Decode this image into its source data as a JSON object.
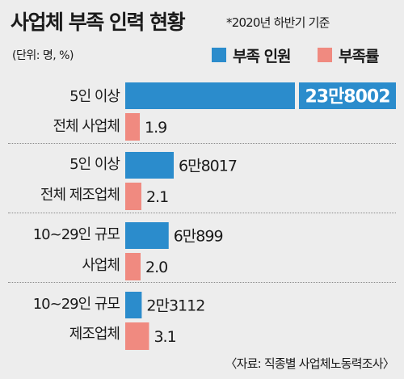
{
  "title": "사업체 부족 인력 현황",
  "note": "*2020년 하반기 기준",
  "unit": "(단위: 명, %)",
  "legend": [
    {
      "label": "부족 인원",
      "color": "#2b8ccc"
    },
    {
      "label": "부족률",
      "color": "#f08a80"
    }
  ],
  "source": "〈자료: 직종별 사업체노동력조사〉",
  "chart_data": {
    "type": "bar",
    "categories": [
      {
        "line1": "5인 이상",
        "line2": "전체 사업체"
      },
      {
        "line1": "5인 이상",
        "line2": "전체 제조업체"
      },
      {
        "line1": "10~29인 규모",
        "line2": "사업체"
      },
      {
        "line1": "10~29인 규모",
        "line2": "제조업체"
      }
    ],
    "series": [
      {
        "name": "부족 인원",
        "values": [
          238002,
          68017,
          60899,
          23112
        ],
        "labels": [
          "23만8002",
          "6만8017",
          "6만899",
          "2만3112"
        ],
        "color": "#2b8ccc"
      },
      {
        "name": "부족률",
        "values": [
          1.9,
          2.1,
          2.0,
          3.1
        ],
        "labels": [
          "1.9",
          "2.1",
          "2.0",
          "3.1"
        ],
        "color": "#f08a80"
      }
    ]
  }
}
